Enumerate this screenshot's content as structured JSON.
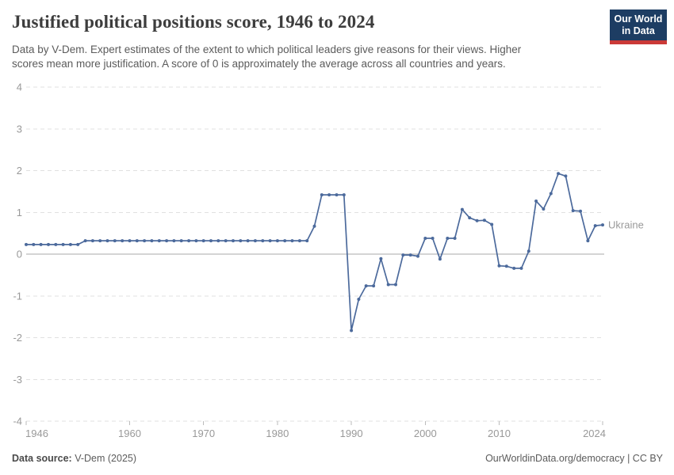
{
  "header": {
    "title": "Justified political positions score, 1946 to 2024",
    "subtitle_lines": [
      "Data by V-Dem. Expert estimates of the extent to which political leaders give reasons for their views. Higher",
      "scores mean more justification. A score of 0 is approximately the average across all countries and years."
    ],
    "logo": {
      "line1": "Our World",
      "line2": "in Data"
    }
  },
  "footer": {
    "source_label": "Data source:",
    "source_value": " V-Dem (2025)",
    "link": "OurWorldinData.org/democracy",
    "separator": " | ",
    "license": "CC BY"
  },
  "colors": {
    "line": "#4c6a9c",
    "entity_label": "#4c6a9c",
    "grid": "#e0e0e0",
    "zero_line": "#a8a8a8",
    "tick_mark": "#bbbbbb",
    "axis_text": "#999999"
  },
  "chart_data": {
    "type": "line",
    "title": "Justified political positions score, 1946 to 2024",
    "entity": "Ukraine",
    "xlabel": "",
    "ylabel": "",
    "xlim": [
      1946,
      2024
    ],
    "ylim": [
      -4,
      4
    ],
    "y_ticks": [
      4,
      3,
      2,
      1,
      0,
      -1,
      -2,
      -3,
      -4
    ],
    "x_ticks": [
      1946,
      1960,
      1970,
      1980,
      1990,
      2000,
      2010,
      2024
    ],
    "grid": "horizontal-dashed, solid zero line",
    "legend_position": "label at end of line",
    "x": [
      1946,
      1947,
      1948,
      1949,
      1950,
      1951,
      1952,
      1953,
      1954,
      1955,
      1956,
      1957,
      1958,
      1959,
      1960,
      1961,
      1962,
      1963,
      1964,
      1965,
      1966,
      1967,
      1968,
      1969,
      1970,
      1971,
      1972,
      1973,
      1974,
      1975,
      1976,
      1977,
      1978,
      1979,
      1980,
      1981,
      1982,
      1983,
      1984,
      1985,
      1986,
      1987,
      1988,
      1989,
      1990,
      1991,
      1992,
      1993,
      1994,
      1995,
      1996,
      1997,
      1998,
      1999,
      2000,
      2001,
      2002,
      2003,
      2004,
      2005,
      2006,
      2007,
      2008,
      2009,
      2010,
      2011,
      2012,
      2013,
      2014,
      2015,
      2016,
      2017,
      2018,
      2019,
      2020,
      2021,
      2022,
      2023,
      2024
    ],
    "values": [
      0.23,
      0.23,
      0.23,
      0.23,
      0.23,
      0.23,
      0.23,
      0.23,
      0.32,
      0.32,
      0.32,
      0.32,
      0.32,
      0.32,
      0.32,
      0.32,
      0.32,
      0.32,
      0.32,
      0.32,
      0.32,
      0.32,
      0.32,
      0.32,
      0.32,
      0.32,
      0.32,
      0.32,
      0.32,
      0.32,
      0.32,
      0.32,
      0.32,
      0.32,
      0.32,
      0.32,
      0.32,
      0.32,
      0.32,
      0.67,
      1.42,
      1.42,
      1.42,
      1.42,
      -1.83,
      -1.08,
      -0.76,
      -0.76,
      -0.11,
      -0.73,
      -0.73,
      -0.02,
      -0.02,
      -0.05,
      0.38,
      0.38,
      -0.12,
      0.38,
      0.38,
      1.07,
      0.87,
      0.8,
      0.81,
      0.71,
      -0.28,
      -0.29,
      -0.34,
      -0.34,
      0.07,
      1.27,
      1.08,
      1.45,
      1.93,
      1.87,
      1.04,
      1.03,
      0.32,
      0.68,
      0.7
    ]
  }
}
